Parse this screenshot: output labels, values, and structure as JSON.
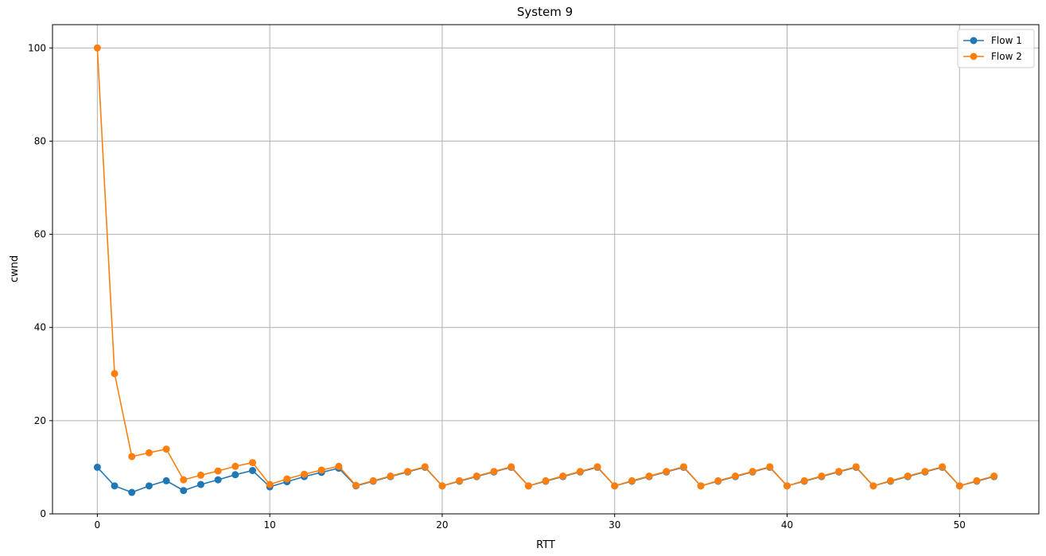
{
  "chart_data": {
    "type": "line",
    "title": "System 9",
    "xlabel": "RTT",
    "ylabel": "cwnd",
    "xlim": [
      -2.6,
      54.6
    ],
    "ylim": [
      0,
      105
    ],
    "xticks": [
      0,
      10,
      20,
      30,
      40,
      50
    ],
    "yticks": [
      0,
      20,
      40,
      60,
      80,
      100
    ],
    "grid": true,
    "legend_position": "top-right",
    "x": [
      0,
      1,
      2,
      3,
      4,
      5,
      6,
      7,
      8,
      9,
      10,
      11,
      12,
      13,
      14,
      15,
      16,
      17,
      18,
      19,
      20,
      21,
      22,
      23,
      24,
      25,
      26,
      27,
      28,
      29,
      30,
      31,
      32,
      33,
      34,
      35,
      36,
      37,
      38,
      39,
      40,
      41,
      42,
      43,
      44,
      45,
      46,
      47,
      48,
      49,
      50,
      51,
      52
    ],
    "series": [
      {
        "name": "Flow 1",
        "color": "#1f77b4",
        "values": [
          10,
          6,
          4.6,
          6,
          7.1,
          5,
          6.3,
          7.3,
          8.4,
          9.3,
          5.8,
          6.9,
          8,
          8.9,
          9.8,
          6,
          7,
          8,
          9,
          10,
          6,
          7,
          8,
          9,
          10,
          6,
          7,
          8,
          9,
          10,
          6,
          7,
          8,
          9,
          10,
          6,
          7,
          8,
          9,
          10,
          6,
          7,
          8,
          9,
          10,
          6,
          7,
          8,
          9,
          10,
          6,
          7,
          8
        ]
      },
      {
        "name": "Flow 2",
        "color": "#ff7f0e",
        "values": [
          100,
          30.1,
          12.3,
          13.1,
          13.9,
          7.3,
          8.3,
          9.2,
          10.2,
          11,
          6.3,
          7.5,
          8.5,
          9.4,
          10.2,
          6.1,
          7.1,
          8.1,
          9.1,
          10.1,
          6,
          7.1,
          8.1,
          9.1,
          10.1,
          6,
          7.1,
          8.1,
          9.1,
          10.1,
          6,
          7.1,
          8.1,
          9.1,
          10.1,
          6,
          7.1,
          8.1,
          9.1,
          10.1,
          6,
          7.1,
          8.1,
          9.1,
          10.1,
          6,
          7.1,
          8.1,
          9.1,
          10.1,
          6,
          7.1,
          8.1
        ]
      }
    ]
  }
}
